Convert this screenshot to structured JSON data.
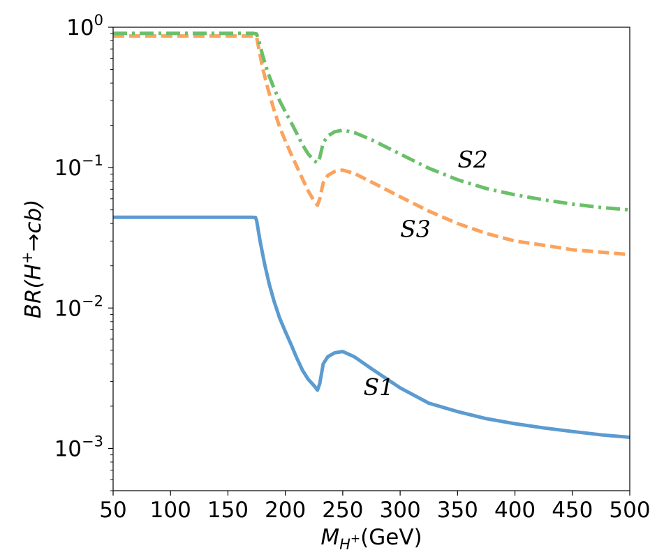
{
  "chart_data": {
    "type": "line",
    "title": "",
    "xlabel": {
      "main": "M",
      "sub": "H",
      "subsup": "+",
      "unit": "(GeV)"
    },
    "ylabel": {
      "prefix": "BR(H",
      "sup": "+",
      "suffix": "→cb)"
    },
    "xlim": [
      50,
      500
    ],
    "ylim": [
      0.0005,
      1
    ],
    "yscale": "log",
    "grid": false,
    "x_ticks": [
      50,
      100,
      150,
      200,
      250,
      300,
      350,
      400,
      450,
      500
    ],
    "x_tick_labels": [
      "50",
      "100",
      "150",
      "200",
      "250",
      "300",
      "350",
      "400",
      "450",
      "500"
    ],
    "y_ticks": [
      {
        "value": 1,
        "base": "10",
        "exp": "0"
      },
      {
        "value": 0.1,
        "base": "10",
        "exp": "−1"
      },
      {
        "value": 0.01,
        "base": "10",
        "exp": "−2"
      },
      {
        "value": 0.001,
        "base": "10",
        "exp": "−3"
      }
    ],
    "series": [
      {
        "label": "S1",
        "color": "#5b9bd0",
        "style": "solid",
        "label_at": {
          "x": 268,
          "y": 0.0024
        },
        "points": [
          [
            50,
            0.0443
          ],
          [
            170,
            0.0443
          ],
          [
            174,
            0.0442
          ],
          [
            175,
            0.042
          ],
          [
            178,
            0.03
          ],
          [
            182,
            0.0205
          ],
          [
            186,
            0.0148
          ],
          [
            190,
            0.0113
          ],
          [
            195,
            0.0085
          ],
          [
            200,
            0.0068
          ],
          [
            205,
            0.0055
          ],
          [
            210,
            0.0044
          ],
          [
            215,
            0.0036
          ],
          [
            220,
            0.0031
          ],
          [
            225,
            0.0028
          ],
          [
            228,
            0.0026
          ],
          [
            230,
            0.0029
          ],
          [
            233,
            0.004
          ],
          [
            237,
            0.0045
          ],
          [
            243,
            0.0048
          ],
          [
            250,
            0.0049
          ],
          [
            260,
            0.0045
          ],
          [
            275,
            0.0037
          ],
          [
            300,
            0.0027
          ],
          [
            325,
            0.0021
          ],
          [
            350,
            0.00183
          ],
          [
            375,
            0.00163
          ],
          [
            400,
            0.0015
          ],
          [
            425,
            0.0014
          ],
          [
            450,
            0.00132
          ],
          [
            475,
            0.00125
          ],
          [
            500,
            0.0012
          ]
        ]
      },
      {
        "label": "S2",
        "color": "#6abf69",
        "style": "dashdot",
        "label_at": {
          "x": 350,
          "y": 0.1
        },
        "points": [
          [
            50,
            0.905
          ],
          [
            172,
            0.905
          ],
          [
            175,
            0.895
          ],
          [
            177,
            0.8
          ],
          [
            180,
            0.64
          ],
          [
            185,
            0.47
          ],
          [
            190,
            0.37
          ],
          [
            195,
            0.3
          ],
          [
            200,
            0.25
          ],
          [
            205,
            0.21
          ],
          [
            210,
            0.175
          ],
          [
            215,
            0.145
          ],
          [
            220,
            0.125
          ],
          [
            225,
            0.112
          ],
          [
            228,
            0.108
          ],
          [
            230,
            0.118
          ],
          [
            233,
            0.15
          ],
          [
            237,
            0.168
          ],
          [
            243,
            0.18
          ],
          [
            250,
            0.185
          ],
          [
            260,
            0.178
          ],
          [
            275,
            0.158
          ],
          [
            300,
            0.125
          ],
          [
            325,
            0.099
          ],
          [
            350,
            0.082
          ],
          [
            375,
            0.071
          ],
          [
            400,
            0.064
          ],
          [
            425,
            0.059
          ],
          [
            450,
            0.055
          ],
          [
            475,
            0.052
          ],
          [
            500,
            0.05
          ]
        ]
      },
      {
        "label": "S3",
        "color": "#fba35e",
        "style": "dashed",
        "label_at": {
          "x": 300,
          "y": 0.032
        },
        "points": [
          [
            50,
            0.865
          ],
          [
            172,
            0.865
          ],
          [
            175,
            0.85
          ],
          [
            177,
            0.7
          ],
          [
            180,
            0.52
          ],
          [
            185,
            0.36
          ],
          [
            190,
            0.26
          ],
          [
            195,
            0.195
          ],
          [
            200,
            0.155
          ],
          [
            205,
            0.125
          ],
          [
            210,
            0.102
          ],
          [
            215,
            0.083
          ],
          [
            220,
            0.068
          ],
          [
            225,
            0.058
          ],
          [
            228,
            0.054
          ],
          [
            230,
            0.06
          ],
          [
            233,
            0.078
          ],
          [
            237,
            0.088
          ],
          [
            243,
            0.094
          ],
          [
            250,
            0.096
          ],
          [
            260,
            0.091
          ],
          [
            275,
            0.079
          ],
          [
            300,
            0.062
          ],
          [
            325,
            0.049
          ],
          [
            350,
            0.04
          ],
          [
            375,
            0.034
          ],
          [
            400,
            0.03
          ],
          [
            425,
            0.028
          ],
          [
            450,
            0.026
          ],
          [
            475,
            0.025
          ],
          [
            500,
            0.024
          ]
        ]
      }
    ]
  }
}
